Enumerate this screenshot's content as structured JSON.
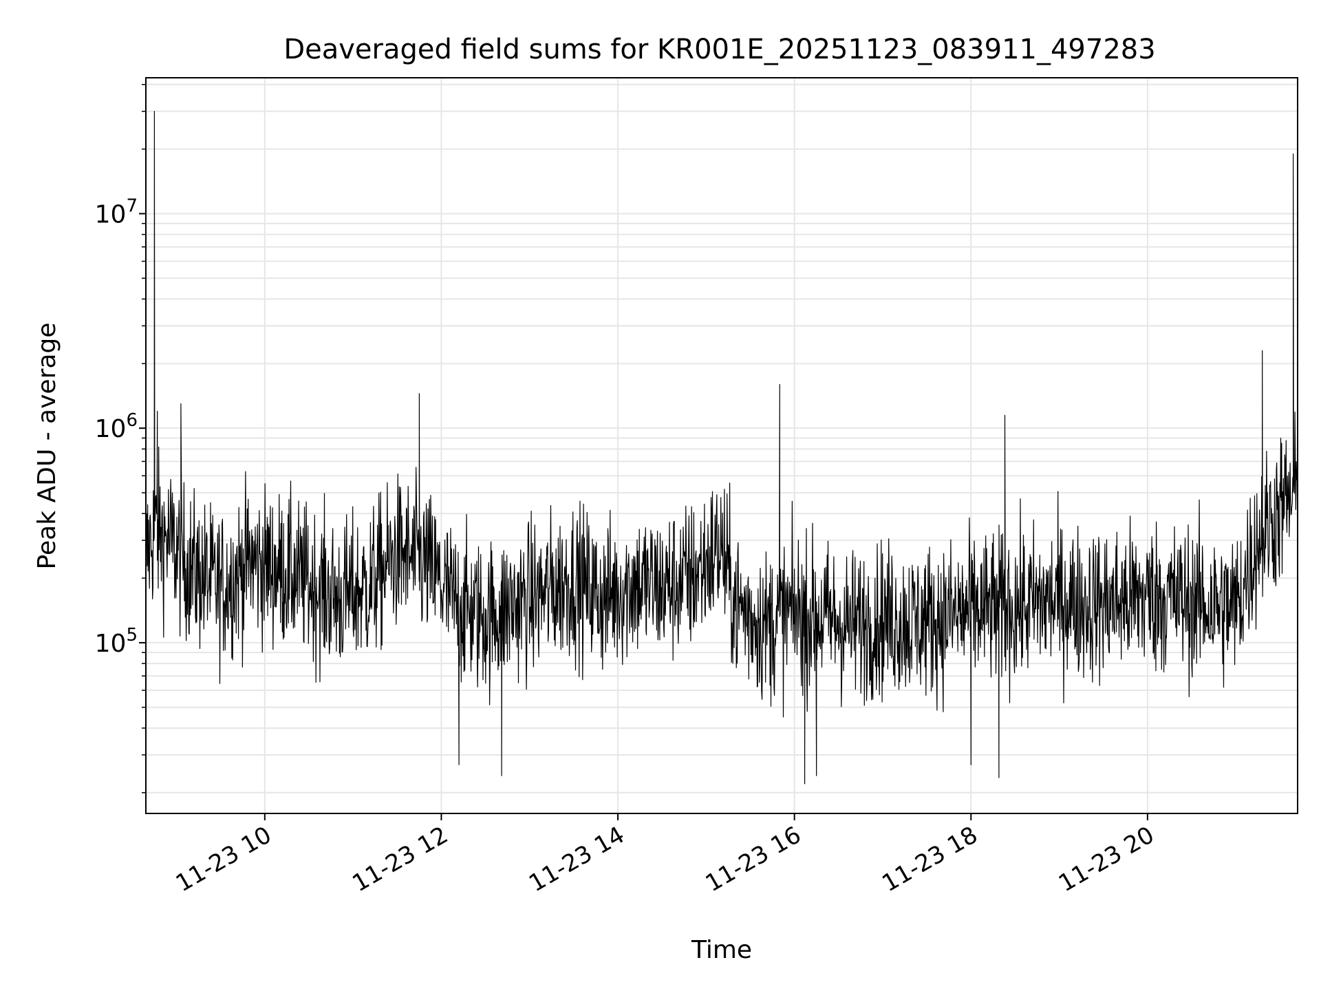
{
  "chart_data": {
    "type": "line",
    "title": "Deaveraged field sums for KR001E_20251123_083911_497283",
    "xlabel": "Time",
    "ylabel": "Peak ADU - average",
    "x_axis": {
      "kind": "datetime",
      "range_start": "2025-11-23T08:39:11",
      "range_end": "2025-11-23T21:42:00",
      "ticks": [
        {
          "time": "2025-11-23T10:00",
          "label": "11-23 10"
        },
        {
          "time": "2025-11-23T12:00",
          "label": "11-23 12"
        },
        {
          "time": "2025-11-23T14:00",
          "label": "11-23 14"
        },
        {
          "time": "2025-11-23T16:00",
          "label": "11-23 16"
        },
        {
          "time": "2025-11-23T18:00",
          "label": "11-23 18"
        },
        {
          "time": "2025-11-23T20:00",
          "label": "11-23 20"
        }
      ]
    },
    "y_axis": {
      "scale": "log",
      "range": [
        16000,
        43000000
      ],
      "ticks": [
        {
          "value": 100000,
          "base": "10",
          "exp": "5"
        },
        {
          "value": 1000000,
          "base": "10",
          "exp": "6"
        },
        {
          "value": 10000000,
          "base": "10",
          "exp": "7"
        }
      ]
    },
    "grid": true,
    "line_color": "#000000",
    "series": [
      {
        "x": [
          "2025-11-23T08:39",
          "2025-11-23T08:45",
          "2025-11-23T08:55",
          "2025-11-23T09:10",
          "2025-11-23T09:30",
          "2025-11-23T09:50",
          "2025-11-23T10:10",
          "2025-11-23T10:30",
          "2025-11-23T10:50",
          "2025-11-23T11:10",
          "2025-11-23T11:30",
          "2025-11-23T11:50",
          "2025-11-23T12:10",
          "2025-11-23T12:30",
          "2025-11-23T12:50",
          "2025-11-23T13:10",
          "2025-11-23T13:30",
          "2025-11-23T13:50",
          "2025-11-23T14:10",
          "2025-11-23T14:30",
          "2025-11-23T14:50",
          "2025-11-23T15:10",
          "2025-11-23T15:20",
          "2025-11-23T15:40",
          "2025-11-23T16:00",
          "2025-11-23T16:20",
          "2025-11-23T16:40",
          "2025-11-23T17:00",
          "2025-11-23T17:20",
          "2025-11-23T17:40",
          "2025-11-23T18:00",
          "2025-11-23T18:20",
          "2025-11-23T18:40",
          "2025-11-23T19:00",
          "2025-11-23T19:20",
          "2025-11-23T19:40",
          "2025-11-23T20:00",
          "2025-11-23T20:20",
          "2025-11-23T20:40",
          "2025-11-23T21:00",
          "2025-11-23T21:15",
          "2025-11-23T21:30",
          "2025-11-23T21:42"
        ],
        "y": [
          250000,
          330000,
          300000,
          220000,
          180000,
          240000,
          220000,
          190000,
          160000,
          180000,
          260000,
          230000,
          150000,
          130000,
          150000,
          170000,
          200000,
          160000,
          190000,
          180000,
          200000,
          280000,
          150000,
          120000,
          140000,
          130000,
          120000,
          130000,
          125000,
          130000,
          140000,
          145000,
          150000,
          160000,
          150000,
          155000,
          165000,
          160000,
          150000,
          145000,
          300000,
          420000,
          500000
        ]
      }
    ],
    "spikes": [
      {
        "time": "2025-11-23T08:45",
        "value": 30000000
      },
      {
        "time": "2025-11-23T08:47",
        "value": 1200000
      },
      {
        "time": "2025-11-23T09:03",
        "value": 1300000
      },
      {
        "time": "2025-11-23T11:45",
        "value": 1450000
      },
      {
        "time": "2025-11-23T15:50",
        "value": 1600000
      },
      {
        "time": "2025-11-23T18:23",
        "value": 1150000
      },
      {
        "time": "2025-11-23T21:18",
        "value": 2300000
      },
      {
        "time": "2025-11-23T21:39",
        "value": 19000000
      }
    ],
    "dips": [
      {
        "time": "2025-11-23T12:12",
        "value": 27000
      },
      {
        "time": "2025-11-23T12:41",
        "value": 24000
      },
      {
        "time": "2025-11-23T16:07",
        "value": 22000
      },
      {
        "time": "2025-11-23T16:15",
        "value": 24000
      },
      {
        "time": "2025-11-23T18:00",
        "value": 27000
      },
      {
        "time": "2025-11-23T18:19",
        "value": 23500
      }
    ]
  }
}
